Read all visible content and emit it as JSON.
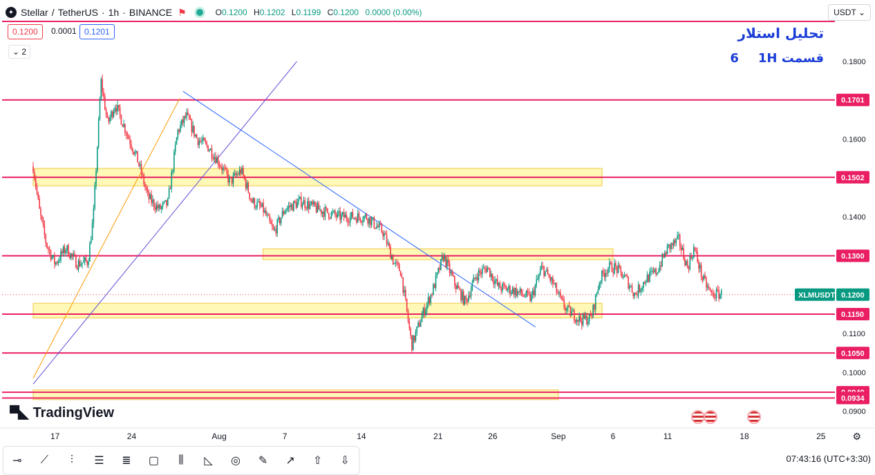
{
  "header": {
    "symbol": "Stellar",
    "quote": "TetherUS",
    "interval": "1h",
    "exchange": "BINANCE",
    "ohlc": {
      "o_label": "O",
      "o": "0.1200",
      "h_label": "H",
      "h": "0.1202",
      "l_label": "L",
      "l": "0.1199",
      "c_label": "C",
      "c": "0.1200",
      "change": "0.0000 (0.00%)"
    }
  },
  "trade": {
    "sell": "0.1200",
    "spread": "0.0001",
    "buy": "0.1201"
  },
  "indicators_count": "2",
  "currency": "USDT",
  "annotation": {
    "title": "تحلیل استلار",
    "timeframe": "1H",
    "part": "قسمت 6"
  },
  "brand": "TradingView",
  "footer": {
    "time": "07:43:16",
    "timezone": "(UTC+3:30)"
  },
  "colors": {
    "level": "#e91e63",
    "zone": "#fff59d",
    "trend_down": "#2962ff",
    "trend_up": "#ff9800",
    "channel": "#5b4dd6",
    "up": "#089981",
    "down": "#f23645"
  },
  "toolbar": [
    "horizontal-ray",
    "trend-line",
    "vertical-line",
    "parallel-channel",
    "fib-retracement",
    "rectangle",
    "pitchfork",
    "path",
    "circle",
    "brush",
    "arrow",
    "arrow-up",
    "arrow-down"
  ],
  "chart_data": {
    "type": "candlestick",
    "symbol_label": "XLMUSDT",
    "last_price": 0.12,
    "y_axis": {
      "ticks": [
        0.09,
        0.1,
        0.11,
        0.14,
        0.16,
        0.18
      ],
      "tick_labels": [
        "0.0900",
        "0.1000",
        "0.1100",
        "0.1400",
        "0.1600",
        "0.1800"
      ],
      "range": [
        0.0885,
        0.1915
      ]
    },
    "x_axis": {
      "range": [
        "Jul 15",
        "Sep 27"
      ],
      "ticks": [
        {
          "day": 2,
          "label": "17"
        },
        {
          "day": 9,
          "label": "24"
        },
        {
          "day": 17,
          "label": "Aug"
        },
        {
          "day": 23,
          "label": "7"
        },
        {
          "day": 30,
          "label": "14"
        },
        {
          "day": 37,
          "label": "21"
        },
        {
          "day": 42,
          "label": "26"
        },
        {
          "day": 48,
          "label": "Sep"
        },
        {
          "day": 53,
          "label": "6"
        },
        {
          "day": 58,
          "label": "11"
        },
        {
          "day": 65,
          "label": "18"
        },
        {
          "day": 72,
          "label": "25"
        }
      ]
    },
    "levels": [
      {
        "price": 0.1701,
        "label": "0.1701"
      },
      {
        "price": 0.1502,
        "label": "0.1502"
      },
      {
        "price": 0.13,
        "label": "0.1300"
      },
      {
        "price": 0.115,
        "label": "0.1150"
      },
      {
        "price": 0.105,
        "label": "0.1050"
      },
      {
        "price": 0.0949,
        "label": "0.0949"
      },
      {
        "price": 0.0934,
        "label": "0.0934"
      },
      {
        "price": 0.1903,
        "label": ""
      }
    ],
    "zones": [
      {
        "from_day": 0,
        "to_day": 52,
        "low": 0.148,
        "high": 0.1525
      },
      {
        "from_day": 21,
        "to_day": 53,
        "low": 0.129,
        "high": 0.1318
      },
      {
        "from_day": 0,
        "to_day": 52,
        "low": 0.114,
        "high": 0.1178
      },
      {
        "from_day": 0,
        "to_day": 48,
        "low": 0.093,
        "high": 0.0955
      }
    ],
    "trendlines": [
      {
        "name": "",
        "from": {
          "day": 13.7,
          "price": 0.1723
        },
        "to": {
          "day": 45.9,
          "price": 0.1117
        },
        "color": "#2962ff"
      },
      {
        "name": "",
        "from": {
          "day": 0.0,
          "price": 0.0985
        },
        "to": {
          "day": 13.4,
          "price": 0.1705
        },
        "color": "#ff9800"
      },
      {
        "name": "",
        "from": {
          "day": 0.0,
          "price": 0.097
        },
        "to": {
          "day": 24.1,
          "price": 0.18
        },
        "color": "#5b4dd6"
      }
    ],
    "price_path": [
      {
        "day": 0.0,
        "price": 0.153
      },
      {
        "day": 0.6,
        "price": 0.141
      },
      {
        "day": 1.2,
        "price": 0.133
      },
      {
        "day": 2.0,
        "price": 0.128
      },
      {
        "day": 3.0,
        "price": 0.132
      },
      {
        "day": 4.0,
        "price": 0.128
      },
      {
        "day": 5.0,
        "price": 0.1285
      },
      {
        "day": 5.5,
        "price": 0.14
      },
      {
        "day": 6.2,
        "price": 0.175
      },
      {
        "day": 6.8,
        "price": 0.164
      },
      {
        "day": 7.5,
        "price": 0.169
      },
      {
        "day": 8.5,
        "price": 0.162
      },
      {
        "day": 9.5,
        "price": 0.155
      },
      {
        "day": 10.5,
        "price": 0.145
      },
      {
        "day": 11.5,
        "price": 0.142
      },
      {
        "day": 12.3,
        "price": 0.1435
      },
      {
        "day": 13.2,
        "price": 0.162
      },
      {
        "day": 14.0,
        "price": 0.166
      },
      {
        "day": 15.0,
        "price": 0.16
      },
      {
        "day": 16.0,
        "price": 0.158
      },
      {
        "day": 17.0,
        "price": 0.154
      },
      {
        "day": 18.0,
        "price": 0.149
      },
      {
        "day": 19.0,
        "price": 0.152
      },
      {
        "day": 20.0,
        "price": 0.144
      },
      {
        "day": 21.0,
        "price": 0.142
      },
      {
        "day": 22.0,
        "price": 0.136
      },
      {
        "day": 23.0,
        "price": 0.142
      },
      {
        "day": 24.5,
        "price": 0.144
      },
      {
        "day": 26.0,
        "price": 0.142
      },
      {
        "day": 28.0,
        "price": 0.14
      },
      {
        "day": 30.5,
        "price": 0.14
      },
      {
        "day": 32.0,
        "price": 0.136
      },
      {
        "day": 33.0,
        "price": 0.128
      },
      {
        "day": 33.6,
        "price": 0.126
      },
      {
        "day": 34.6,
        "price": 0.107
      },
      {
        "day": 35.6,
        "price": 0.115
      },
      {
        "day": 36.5,
        "price": 0.121
      },
      {
        "day": 37.5,
        "price": 0.13
      },
      {
        "day": 38.5,
        "price": 0.123
      },
      {
        "day": 39.5,
        "price": 0.118
      },
      {
        "day": 40.5,
        "price": 0.125
      },
      {
        "day": 41.5,
        "price": 0.127
      },
      {
        "day": 42.5,
        "price": 0.122
      },
      {
        "day": 44.0,
        "price": 0.121
      },
      {
        "day": 45.5,
        "price": 0.119
      },
      {
        "day": 46.5,
        "price": 0.127
      },
      {
        "day": 47.5,
        "price": 0.123
      },
      {
        "day": 48.3,
        "price": 0.118
      },
      {
        "day": 48.8,
        "price": 0.116
      },
      {
        "day": 50.0,
        "price": 0.1135
      },
      {
        "day": 51.0,
        "price": 0.114
      },
      {
        "day": 51.8,
        "price": 0.124
      },
      {
        "day": 52.5,
        "price": 0.127
      },
      {
        "day": 53.2,
        "price": 0.127
      },
      {
        "day": 54.2,
        "price": 0.124
      },
      {
        "day": 55.0,
        "price": 0.12
      },
      {
        "day": 56.0,
        "price": 0.124
      },
      {
        "day": 57.0,
        "price": 0.126
      },
      {
        "day": 58.0,
        "price": 0.132
      },
      {
        "day": 59.0,
        "price": 0.134
      },
      {
        "day": 59.8,
        "price": 0.127
      },
      {
        "day": 60.4,
        "price": 0.132
      },
      {
        "day": 61.2,
        "price": 0.124
      },
      {
        "day": 62.0,
        "price": 0.12
      },
      {
        "day": 63.0,
        "price": 0.1202
      }
    ]
  }
}
